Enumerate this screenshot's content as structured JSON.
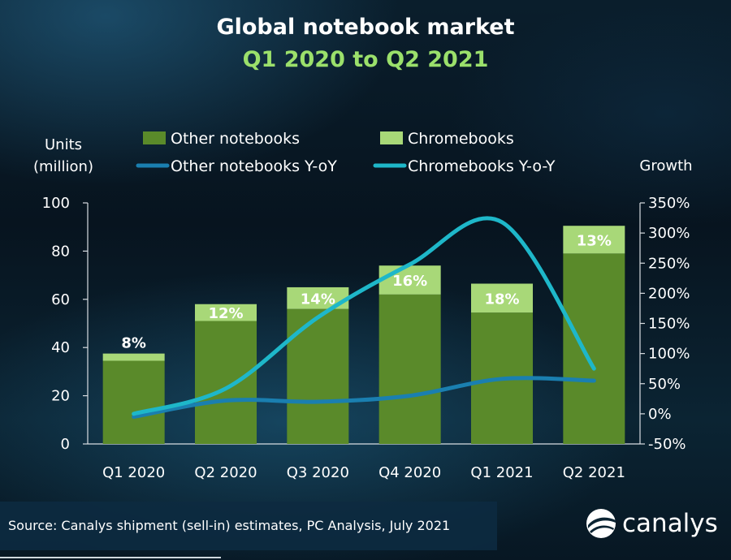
{
  "header": {
    "title": "Global notebook market",
    "subtitle": "Q1 2020 to Q2 2021"
  },
  "footer": {
    "source": "Source: Canalys shipment (sell-in) estimates, PC Analysis, July 2021",
    "logo_text": "canalys"
  },
  "colors": {
    "other_notebooks": "#5a8a2a",
    "chromebooks": "#a8d878",
    "other_yoy": "#1a7fb0",
    "chromebooks_yoy": "#1eb7c9",
    "subtitle": "#9be06b"
  },
  "chart_data": {
    "type": "bar",
    "stacked": true,
    "categories": [
      "Q1 2020",
      "Q2 2020",
      "Q3 2020",
      "Q4 2020",
      "Q1 2021",
      "Q2 2021"
    ],
    "series": [
      {
        "name": "Other notebooks",
        "type": "bar",
        "axis": "left",
        "values": [
          34.5,
          51,
          56,
          62,
          54.5,
          79
        ]
      },
      {
        "name": "Chromebooks",
        "type": "bar",
        "axis": "left",
        "values": [
          3,
          7,
          9,
          12,
          12,
          11.5
        ],
        "labels": [
          "8%",
          "12%",
          "14%",
          "16%",
          "18%",
          "13%"
        ]
      },
      {
        "name": "Other notebooks Y-oY",
        "type": "line",
        "axis": "right",
        "values": [
          -5,
          22,
          20,
          30,
          58,
          55
        ]
      },
      {
        "name": "Chromebooks Y-o-Y",
        "type": "line",
        "axis": "right",
        "values": [
          0,
          42,
          160,
          248,
          318,
          75
        ]
      }
    ],
    "ylabel_left": [
      "Units",
      "(million)"
    ],
    "ylabel_right": "Growth",
    "ylim_left": [
      0,
      100
    ],
    "yticks_left": [
      0,
      20,
      40,
      60,
      80,
      100
    ],
    "ylim_right": [
      -50,
      350
    ],
    "yticks_right": [
      "-50%",
      "0%",
      "50%",
      "100%",
      "150%",
      "200%",
      "250%",
      "300%",
      "350%"
    ],
    "grid": false,
    "legend_position": "top"
  }
}
